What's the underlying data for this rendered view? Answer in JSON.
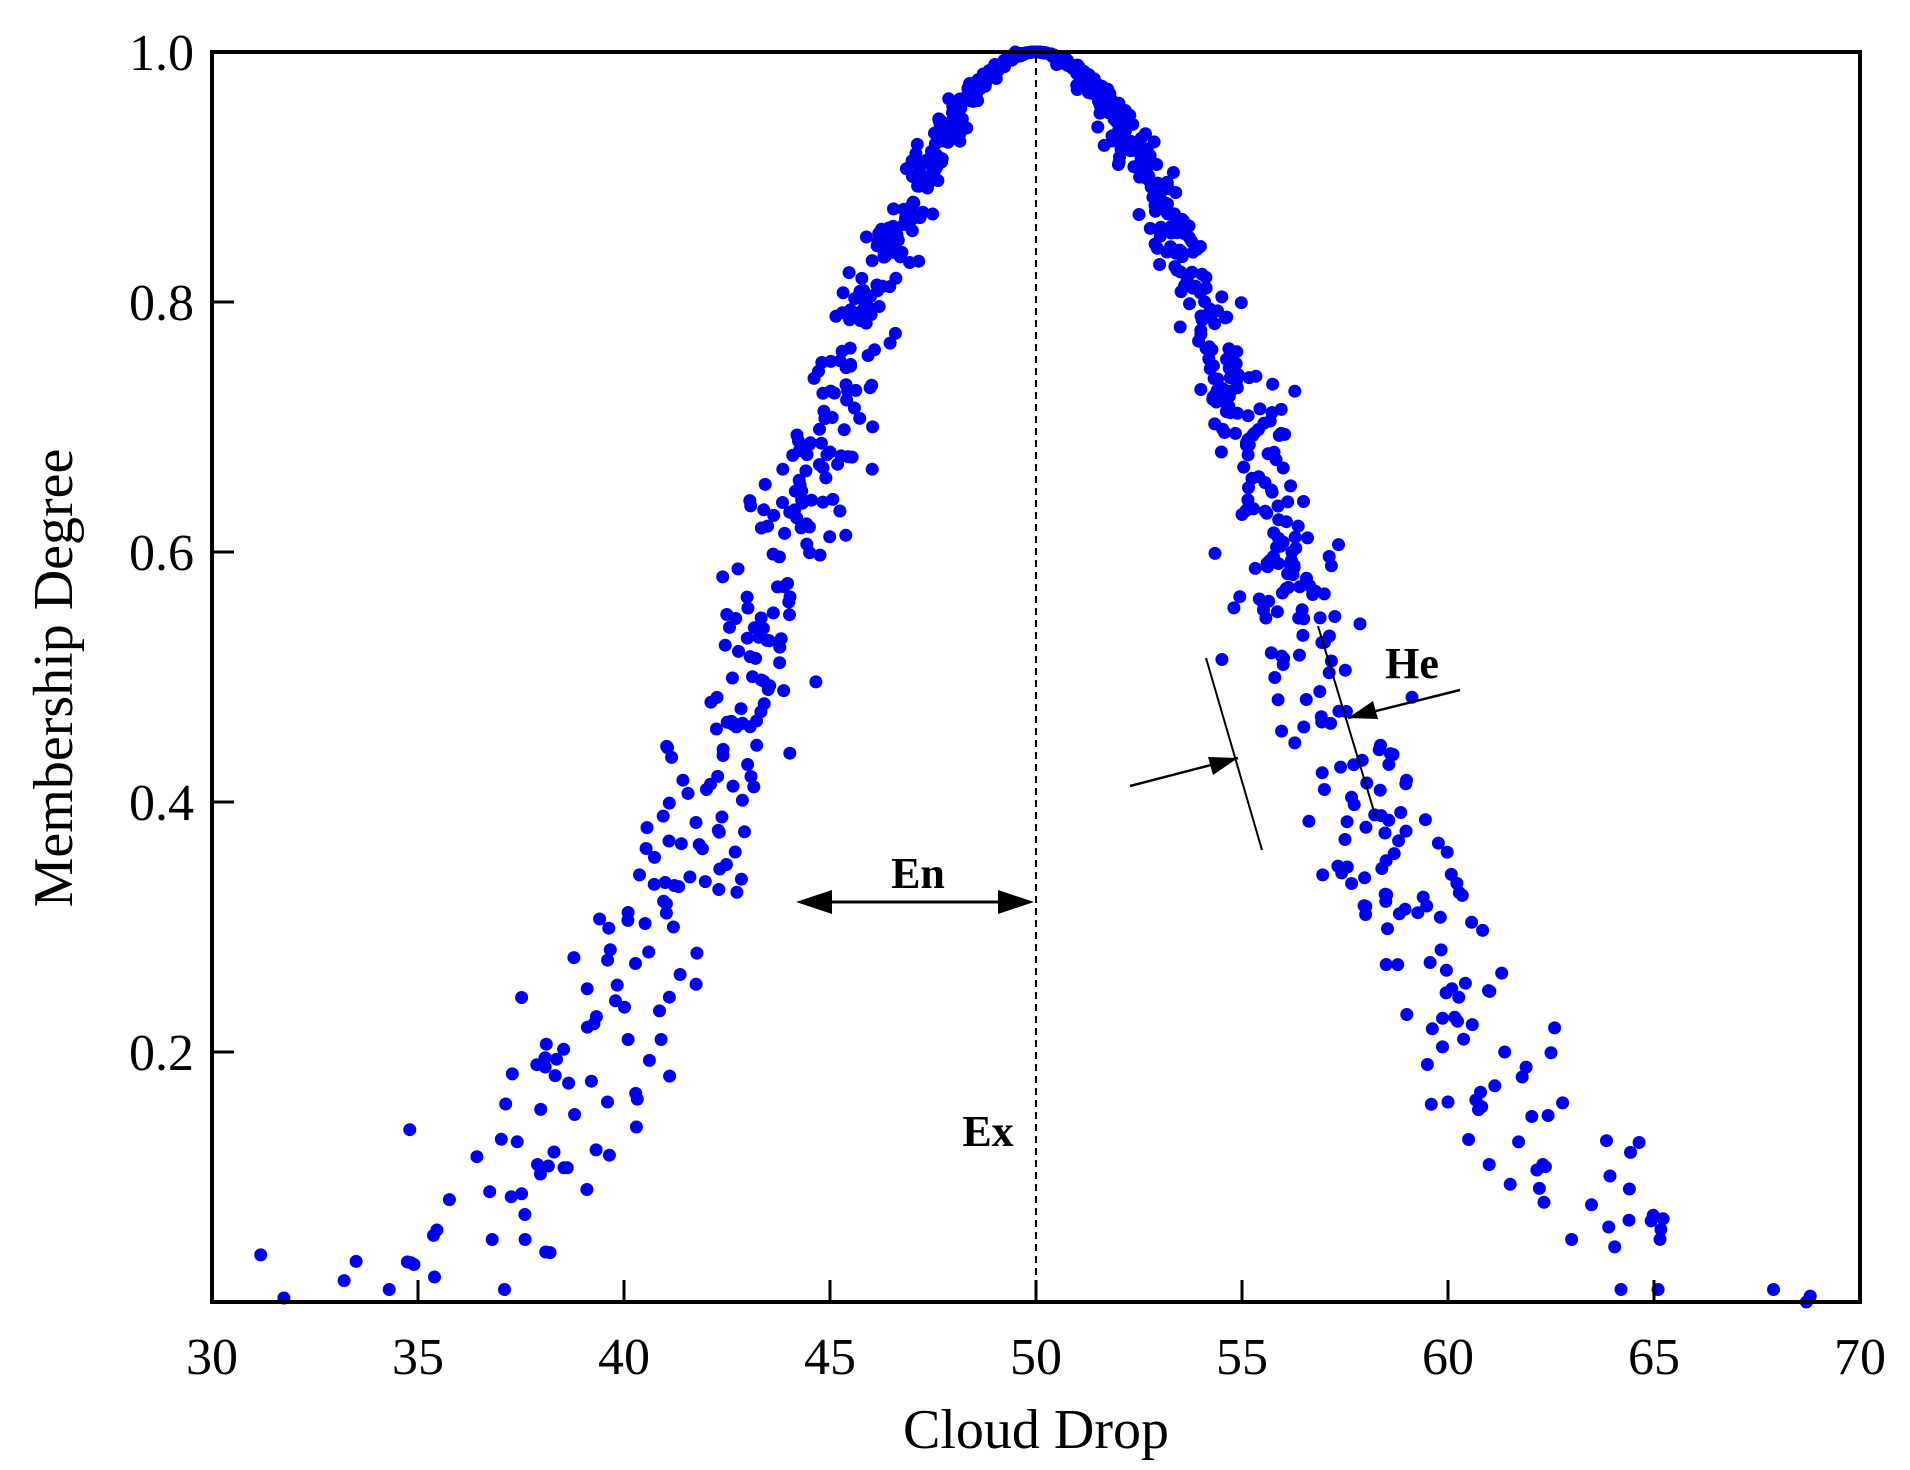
{
  "chart_data": {
    "type": "scatter",
    "xlabel": "Cloud Drop",
    "ylabel": "Membership Degree",
    "xlim": [
      30,
      70
    ],
    "ylim": [
      0,
      1.0
    ],
    "x_ticks": [
      "30",
      "35",
      "40",
      "45",
      "50",
      "55",
      "60",
      "65",
      "70"
    ],
    "y_ticks": [
      "0.2",
      "0.4",
      "0.6",
      "0.8",
      "1.0"
    ],
    "grid": false,
    "legend": "none",
    "marker_color": "#0000ee",
    "generator": {
      "Ex": 50,
      "En": 6,
      "He": 0.6
    },
    "n_points": 1000,
    "series": [
      {
        "x": [
          34.3,
          34.9,
          35.4,
          36.8,
          37.1,
          37.6,
          37.9,
          38.1,
          38.3,
          38.8,
          39.1,
          39.6,
          40.1,
          40.3,
          40.6,
          40.9,
          41.2,
          41.6,
          42.0,
          42.3,
          42.7,
          43.0,
          43.5,
          44.0,
          44.5,
          45.0,
          45.5,
          46.0,
          46.5,
          47.0,
          47.5,
          48.0,
          48.5,
          49.0,
          49.5,
          50.0,
          50.5,
          51.0,
          51.5,
          52.0,
          52.5,
          53.0,
          53.5,
          54.0,
          54.5,
          55.0,
          55.5,
          56.0,
          56.5,
          57.0,
          57.5,
          58.0,
          58.5,
          59.0,
          59.5,
          60.0,
          60.5,
          61.0,
          61.8,
          62.3,
          63.0,
          63.9,
          64.2,
          65.1,
          67.9,
          68.7
        ],
        "y": [
          0.01,
          0.03,
          0.02,
          0.05,
          0.01,
          0.05,
          0.11,
          0.04,
          0.12,
          0.15,
          0.09,
          0.16,
          0.21,
          0.14,
          0.28,
          0.21,
          0.3,
          0.34,
          0.41,
          0.33,
          0.36,
          0.43,
          0.49,
          0.56,
          0.62,
          0.68,
          0.75,
          0.79,
          0.84,
          0.87,
          0.91,
          0.94,
          0.97,
          0.99,
          1.0,
          1.0,
          0.99,
          0.97,
          0.94,
          0.91,
          0.87,
          0.83,
          0.78,
          0.73,
          0.68,
          0.63,
          0.56,
          0.51,
          0.46,
          0.41,
          0.37,
          0.31,
          0.27,
          0.23,
          0.19,
          0.16,
          0.13,
          0.11,
          0.18,
          0.11,
          0.05,
          0.06,
          0.01,
          0.01,
          0.01,
          0.0
        ]
      }
    ],
    "annotations": [
      {
        "text": "En"
      },
      {
        "text": "Ex"
      },
      {
        "text": "He"
      }
    ]
  }
}
